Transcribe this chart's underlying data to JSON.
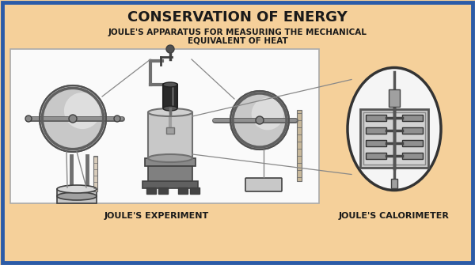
{
  "bg_color": "#F5D09A",
  "border_color": "#2B5BA8",
  "title": "CONSERVATION OF ENERGY",
  "subtitle_line1": "JOULE'S APPARATUS FOR MEASURING THE MECHANICAL",
  "subtitle_line2": "EQUIVALENT OF HEAT",
  "label_left": "JOULE'S EXPERIMENT",
  "label_right": "JOULE'S CALORIMETER",
  "title_fontsize": 13,
  "subtitle_fontsize": 7.5,
  "label_fontsize": 8,
  "main_box_color": "#FAFAFA",
  "main_box_edge": "#999999",
  "oval_bg": "#F5F5F5",
  "metal_light": "#C8C8C8",
  "metal_mid": "#A0A0A0",
  "metal_dark": "#707070",
  "very_dark": "#404040",
  "black": "#1A1A1A",
  "rope_color": "#888888",
  "wood_color": "#C8B89A"
}
